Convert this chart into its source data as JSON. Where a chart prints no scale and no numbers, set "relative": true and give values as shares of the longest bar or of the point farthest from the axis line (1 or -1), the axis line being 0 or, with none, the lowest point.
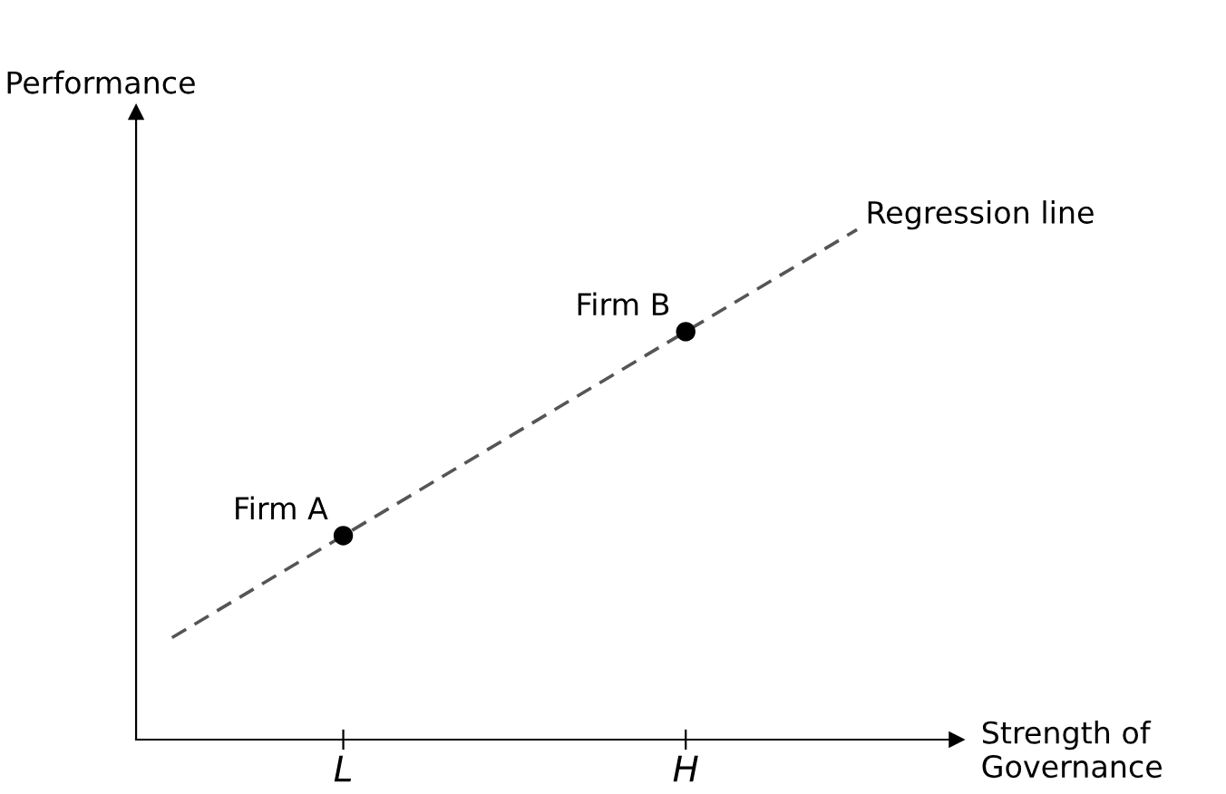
{
  "chart_data": {
    "type": "line",
    "relative": true,
    "xlabel": "Strength of\nGovernance",
    "ylabel": "Performance",
    "categories": [
      null,
      "L",
      null,
      "H",
      null
    ],
    "series": [
      {
        "name": "Regression line",
        "color": "#555555",
        "line_style": "dashed",
        "marker": "none",
        "values": [
          0.2,
          0.4,
          0.6,
          0.8,
          1.0
        ]
      },
      {
        "type": "scatter",
        "color": "#000000",
        "marker": "circle",
        "values": [
          null,
          0.4,
          null,
          0.8,
          null
        ]
      }
    ],
    "annotations": [
      {
        "text": "Firm A",
        "x": "L",
        "y": 0.4
      },
      {
        "text": "Firm B",
        "x": "H",
        "y": 0.8
      }
    ],
    "legend": false,
    "grid": false
  }
}
